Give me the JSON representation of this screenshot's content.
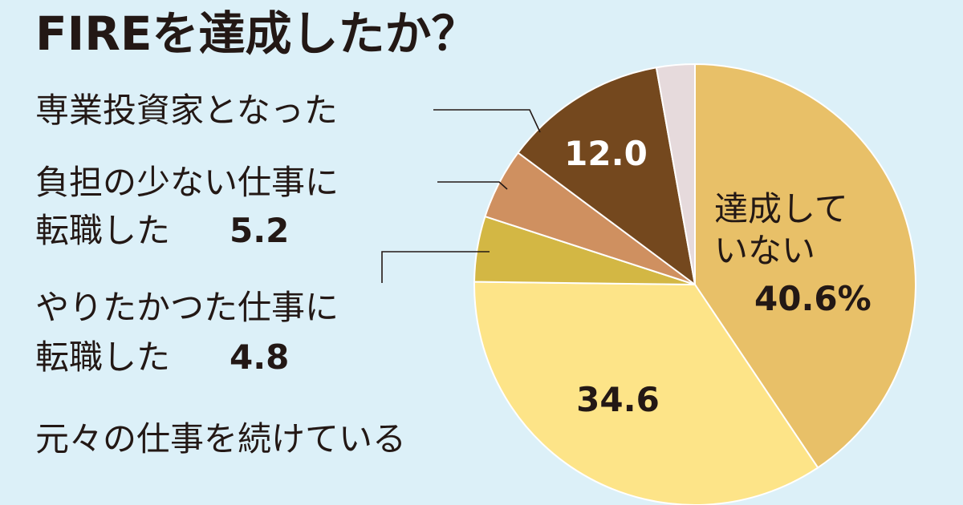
{
  "chart_data": {
    "type": "pie",
    "title": "FIREを達成したか？",
    "slices": [
      {
        "label": "達成していない",
        "label_lines": [
          "達成して",
          "いない"
        ],
        "value": 40.6,
        "value_text": "40.6%",
        "color": "#e8c068"
      },
      {
        "label": "元々の仕事を続けている",
        "label_lines": [
          "元々の仕事を続けている"
        ],
        "value": 34.6,
        "value_text": "34.6",
        "color": "#fde488"
      },
      {
        "label": "やりたかった仕事に転職した",
        "label_lines": [
          "やりたかつた仕事に",
          "転職した"
        ],
        "value": 4.8,
        "value_text": "4.8",
        "color": "#d3b744"
      },
      {
        "label": "負担の少ない仕事に転職した",
        "label_lines": [
          "負担の少ない仕事に",
          "転職した"
        ],
        "value": 5.2,
        "value_text": "5.2",
        "color": "#cf9060"
      },
      {
        "label": "専業投資家となった",
        "label_lines": [
          "専業投資家となった"
        ],
        "value": 12.0,
        "value_text": "12.0",
        "color": "#74481e"
      },
      {
        "label": "",
        "label_lines": [],
        "value": 2.8,
        "value_text": "",
        "color": "#e6dadc"
      }
    ]
  }
}
